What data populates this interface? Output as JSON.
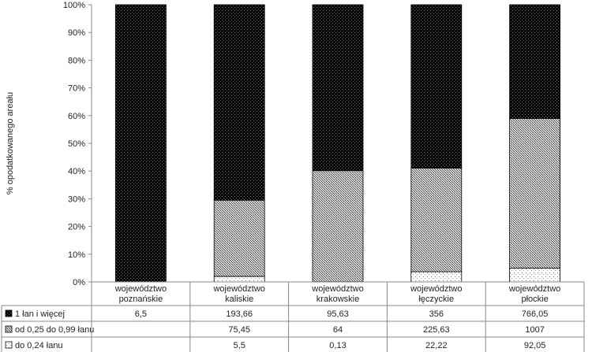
{
  "chart_data": {
    "type": "bar",
    "stacked": "percent",
    "ylabel": "% opodatkowanego areału",
    "y_ticks": [
      "0%",
      "10%",
      "20%",
      "30%",
      "40%",
      "50%",
      "60%",
      "70%",
      "80%",
      "90%",
      "100%"
    ],
    "ylim": [
      0,
      100
    ],
    "grid": false,
    "legend_position": "table-left",
    "categories": [
      [
        "województwo",
        "poznańskie"
      ],
      [
        "województwo",
        "kaliskie"
      ],
      [
        "województwo",
        "krakowskie"
      ],
      [
        "województwo",
        "łęczyckie"
      ],
      [
        "województwo",
        "płockie"
      ]
    ],
    "series": [
      {
        "name": "do 0,24 łanu",
        "pattern": "sparse-dots",
        "values": [
          null,
          5.5,
          0.13,
          22.22,
          92.05
        ],
        "labels": [
          "",
          "5,5",
          "0,13",
          "22,22",
          "92,05"
        ]
      },
      {
        "name": "od 0,25 do 0,99 łanu",
        "pattern": "dense-dots",
        "values": [
          null,
          75.45,
          64,
          225.63,
          1007
        ],
        "labels": [
          "",
          "75,45",
          "64",
          "225,63",
          "1007"
        ]
      },
      {
        "name": "1 łan i więcej",
        "pattern": "black-dots",
        "values": [
          6.5,
          193.66,
          95.63,
          356,
          766.05
        ],
        "labels": [
          "6,5",
          "193,66",
          "95,63",
          "356",
          "766,05"
        ]
      }
    ],
    "table_rows_order": [
      2,
      1,
      0
    ],
    "colors": {
      "black": "#000000",
      "white": "#ffffff",
      "axis": "#888888"
    }
  }
}
